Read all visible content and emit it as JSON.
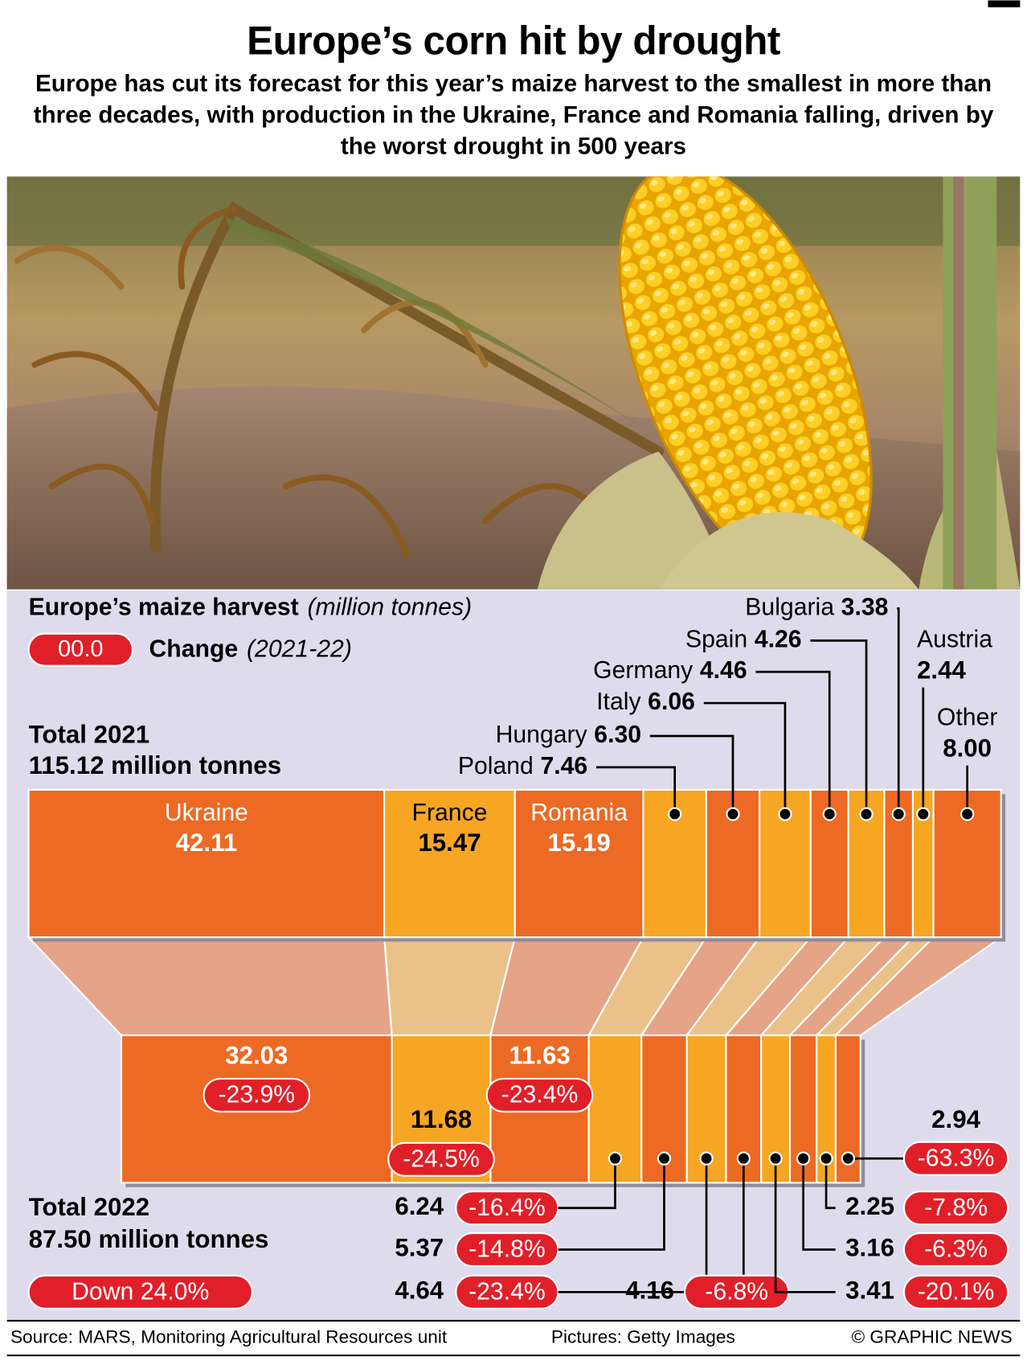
{
  "chart_data": {
    "type": "proportional-bar",
    "title": "Europe’s corn hit by drought",
    "subtitle": "Europe has cut its forecast for this year’s maize harvest to the smallest in more than three decades, with production in the Ukraine, France and Romania falling, driven by the worst drought in 500 years",
    "heading": "Europe’s maize harvest",
    "unit": "(million tonnes)",
    "legend": {
      "sample": "00.0",
      "label": "Change",
      "period": "(2021-22)"
    },
    "categories": [
      "Ukraine",
      "France",
      "Romania",
      "Poland",
      "Hungary",
      "Italy",
      "Germany",
      "Spain",
      "Bulgaria",
      "Austria",
      "Other"
    ],
    "colors": [
      "#ec6a24",
      "#f6a623",
      "#ec6a24",
      "#f6a623",
      "#ec6a24",
      "#f6a623",
      "#ec6a24",
      "#f6a623",
      "#ec6a24",
      "#f6a623",
      "#ec6a24"
    ],
    "series": [
      {
        "name": "Total 2021",
        "total_label": "115.12 million tonnes",
        "values": [
          42.11,
          15.47,
          15.19,
          7.46,
          6.3,
          6.06,
          4.46,
          4.26,
          3.38,
          2.44,
          8.0
        ],
        "value_labels": [
          "42.11",
          "15.47",
          "15.19",
          "7.46",
          "6.30",
          "6.06",
          "4.46",
          "4.26",
          "3.38",
          "2.44",
          "8.00"
        ]
      },
      {
        "name": "Total 2022",
        "total_label": "87.50 million tonnes",
        "values": [
          32.03,
          11.68,
          11.63,
          6.24,
          5.37,
          4.64,
          4.16,
          3.41,
          3.16,
          2.25,
          2.94
        ],
        "value_labels": [
          "32.03",
          "11.68",
          "11.63",
          "6.24",
          "5.37",
          "4.64",
          "4.16",
          "3.41",
          "3.16",
          "2.25",
          "2.94"
        ],
        "changes": [
          -23.9,
          -24.5,
          -23.4,
          -16.4,
          -14.8,
          -23.4,
          -6.8,
          -20.1,
          -6.3,
          -7.8,
          -63.3
        ],
        "change_labels": [
          "-23.9%",
          "-24.5%",
          "-23.4%",
          "-16.4%",
          "-14.8%",
          "-23.4%",
          "-6.8%",
          "-20.1%",
          "-6.3%",
          "-7.8%",
          "-63.3%"
        ]
      }
    ],
    "overall_change": -24.0,
    "overall_change_label": "Down 24.0%",
    "source": "Source: MARS, Monitoring Agricultural Resources unit",
    "credit": "Pictures: Getty Images",
    "copyright": "© GRAPHIC NEWS"
  }
}
